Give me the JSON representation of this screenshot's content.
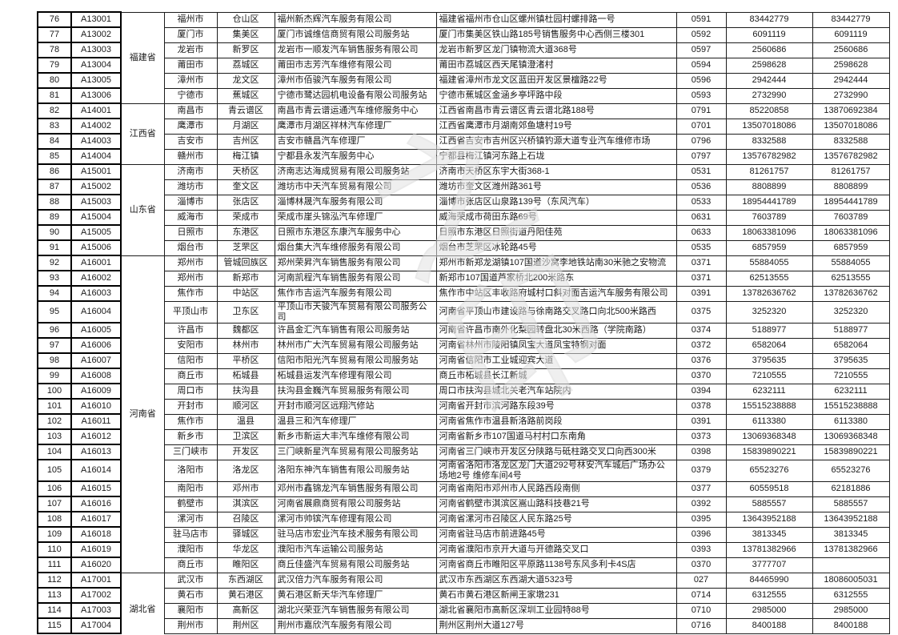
{
  "page": {
    "background": "#ffffff",
    "border_color": "#1c1c1c"
  },
  "watermark": {
    "text": "之印",
    "color": "#e2e2e2"
  },
  "table": {
    "province_groups": [
      {
        "label": "福建省",
        "start_index": 0,
        "row_count": 6
      },
      {
        "label": "江西省",
        "start_index": 6,
        "row_count": 4
      },
      {
        "label": "山东省",
        "start_index": 10,
        "row_count": 6
      },
      {
        "label": "河南省",
        "start_index": 16,
        "row_count": 20
      },
      {
        "label": "湖北省",
        "start_index": 36,
        "row_count": 4,
        "label_below_table": true
      }
    ],
    "rows": [
      {
        "num": "76",
        "code": "A13001",
        "city": "福州市",
        "district": "仓山区",
        "company": "福州新杰辉汽车服务有限公司",
        "address": "福建省福州市仓山区螺州镇杜园村螺排路一号",
        "area_code": "0591",
        "phone": "83442779",
        "phone_alt": "83442779"
      },
      {
        "num": "77",
        "code": "A13002",
        "city": "厦门市",
        "district": "集美区",
        "company": "厦门市诚维信商贸有限公司服务站",
        "address": "厦门市集美区铁山路185号销售服务中心西侧三楼301",
        "area_code": "0592",
        "phone": "6091119",
        "phone_alt": "6091119"
      },
      {
        "num": "78",
        "code": "A13003",
        "city": "龙岩市",
        "district": "新罗区",
        "company": "龙岩市一顺发汽车销售服务有限公司",
        "address": "龙岩市新罗区龙门镇物流大道368号",
        "area_code": "0597",
        "phone": "2560686",
        "phone_alt": "2560686"
      },
      {
        "num": "79",
        "code": "A13004",
        "city": "莆田市",
        "district": "荔城区",
        "company": "莆田市志芳汽车维修有限公司",
        "address": "莆田市荔城区西天尾镇澄渚村",
        "area_code": "0594",
        "phone": "2598628",
        "phone_alt": "2598628"
      },
      {
        "num": "80",
        "code": "A13005",
        "city": "漳州市",
        "district": "龙文区",
        "company": "漳州市佰骏汽车服务有限公司",
        "address": "福建省漳州市龙文区蓝田开发区景檀路22号",
        "area_code": "0596",
        "phone": "2942444",
        "phone_alt": "2942444"
      },
      {
        "num": "81",
        "code": "A13006",
        "city": "宁德市",
        "district": "蕉城区",
        "company": "宁德市鹭达园机电设备有限公司服务站",
        "address": "宁德市蕉城区金涵乡亭坪路中段",
        "area_code": "0593",
        "phone": "2732990",
        "phone_alt": "2732990"
      },
      {
        "num": "82",
        "code": "A14001",
        "city": "南昌市",
        "district": "青云谱区",
        "company": "南昌市青云谱运通汽车维修服务中心",
        "address": "江西省南昌市青云谱区青云谱北路188号",
        "area_code": "0791",
        "phone": "85220858",
        "phone_alt": "13870692384"
      },
      {
        "num": "83",
        "code": "A14002",
        "city": "鹰潭市",
        "district": "月湖区",
        "company": "鹰潭市月湖区祥林汽车修理厂",
        "address": "江西省鹰潭市月湖南郊鱼塘村19号",
        "area_code": "0701",
        "phone": "13507018086",
        "phone_alt": "13507018086"
      },
      {
        "num": "84",
        "code": "A14003",
        "city": "吉安市",
        "district": "吉州区",
        "company": "吉安市赣昌汽车修理厂",
        "address": "江西省吉安市吉州区兴桥镇钓源大道专业汽车维修市场",
        "area_code": "0796",
        "phone": "8332588",
        "phone_alt": "8332588"
      },
      {
        "num": "85",
        "code": "A14004",
        "city": "赣州市",
        "district": "梅江镇",
        "company": "宁都县永发汽车服务中心",
        "address": "宁都县梅江镇河东路上石垅",
        "area_code": "0797",
        "phone": "13576782982",
        "phone_alt": "13576782982"
      },
      {
        "num": "86",
        "code": "A15001",
        "city": "济南市",
        "district": "天桥区",
        "company": "济南志达海成贸易有限公司服务站",
        "address": "济南市天桥区东宇大街368-1",
        "area_code": "0531",
        "phone": "81261757",
        "phone_alt": "81261757"
      },
      {
        "num": "87",
        "code": "A15002",
        "city": "潍坊市",
        "district": "奎文区",
        "company": "潍坊市中天汽车贸易有限公司",
        "address": "潍坊市奎文区潍州路361号",
        "area_code": "0536",
        "phone": "8808899",
        "phone_alt": "8808899"
      },
      {
        "num": "88",
        "code": "A15003",
        "city": "淄博市",
        "district": "张店区",
        "company": "淄博林晟汽车服务有限公司",
        "address": "淄博市张店区山泉路139号（东风汽车）",
        "area_code": "0533",
        "phone": "18954441789",
        "phone_alt": "18954441789"
      },
      {
        "num": "89",
        "code": "A15004",
        "city": "威海市",
        "district": "荣成市",
        "company": "荣成市崖头锦泓汽车修理厂",
        "address": "威海荣成市荷田东路69号",
        "area_code": "0631",
        "phone": "7603789",
        "phone_alt": "7603789"
      },
      {
        "num": "90",
        "code": "A15005",
        "city": "日照市",
        "district": "东港区",
        "company": "日照市东港区东康汽车服务中心",
        "address": "日照市东港区日照街道丹阳佳苑",
        "area_code": "0633",
        "phone": "18063381096",
        "phone_alt": "18063381096"
      },
      {
        "num": "91",
        "code": "A15006",
        "city": "烟台市",
        "district": "芝罘区",
        "company": "烟台集大汽车维修服务有限公司",
        "address": "烟台市芝罘区冰轮路45号",
        "area_code": "0535",
        "phone": "6857959",
        "phone_alt": "6857959"
      },
      {
        "num": "92",
        "code": "A16001",
        "city": "郑州市",
        "district": "管城回族区",
        "company": "郑州荣昇汽车销售服务有限公司",
        "address": "郑州市新郑龙湖镇107国道沙窝李地铁站南30米驰之安物流",
        "area_code": "0371",
        "phone": "55884055",
        "phone_alt": "55884055"
      },
      {
        "num": "93",
        "code": "A16002",
        "city": "郑州市",
        "district": "新郑市",
        "company": "河南凯程汽车销售服务有限公司",
        "address": "新郑市107国道芦家桥北200米路东",
        "area_code": "0371",
        "phone": "62513555",
        "phone_alt": "62513555"
      },
      {
        "num": "94",
        "code": "A16003",
        "city": "焦作市",
        "district": "中站区",
        "company": "焦作市吉运汽车服务有限公司",
        "address": "焦作市中站区丰收路府城村口斜对面吉运汽车服务有限公司",
        "area_code": "0391",
        "phone": "13782636762",
        "phone_alt": "13782636762"
      },
      {
        "num": "95",
        "code": "A16004",
        "city": "平顶山市",
        "district": "卫东区",
        "company": "平顶山市天骏汽车贸易有限公司服务公司",
        "address": "河南省平顶山市建设路与徐南路交叉路口向北500米路西",
        "area_code": "0375",
        "phone": "3252320",
        "phone_alt": "3252320"
      },
      {
        "num": "96",
        "code": "A16005",
        "city": "许昌市",
        "district": "魏都区",
        "company": "许昌金汇汽车销售有限公司服务站",
        "address": "河南省许昌市南外化梨园转盘北30米西路（学院南路）",
        "area_code": "0374",
        "phone": "5188977",
        "phone_alt": "5188977"
      },
      {
        "num": "97",
        "code": "A16006",
        "city": "安阳市",
        "district": "林州市",
        "company": "林州市广大汽车贸易有限公司服务站",
        "address": "河南省林州市陵阳镇凤宝大道凤宝特钢对面",
        "area_code": "0372",
        "phone": "6582064",
        "phone_alt": "6582064"
      },
      {
        "num": "98",
        "code": "A16007",
        "city": "信阳市",
        "district": "平桥区",
        "company": "信阳市阳光汽车贸易有限公司服务站",
        "address": "河南省信阳市工业城迎宾大道",
        "area_code": "0376",
        "phone": "3795635",
        "phone_alt": "3795635"
      },
      {
        "num": "99",
        "code": "A16008",
        "city": "商丘市",
        "district": "柘城县",
        "company": "柘城县运发汽车修理有限公司",
        "address": "商丘市柘城县长江新城",
        "area_code": "0370",
        "phone": "7210555",
        "phone_alt": "7210555"
      },
      {
        "num": "100",
        "code": "A16009",
        "city": "周口市",
        "district": "扶沟县",
        "company": "扶沟县金巍汽车贸易服务有限公司",
        "address": "周口市扶沟县城北关老汽车站院内",
        "area_code": "0394",
        "phone": "6232111",
        "phone_alt": "6232111"
      },
      {
        "num": "101",
        "code": "A16010",
        "city": "开封市",
        "district": "顺河区",
        "company": "开封市顺河区远翔汽修站",
        "address": "河南省开封市滨河路东段39号",
        "area_code": "0378",
        "phone": "15515238888",
        "phone_alt": "15515238888"
      },
      {
        "num": "102",
        "code": "A16011",
        "city": "焦作市",
        "district": "温县",
        "company": "温县三和汽车修理厂",
        "address": "河南省焦作市温县新洛路前岗段",
        "area_code": "0391",
        "phone": "6113380",
        "phone_alt": "6113380"
      },
      {
        "num": "103",
        "code": "A16012",
        "city": "新乡市",
        "district": "卫滨区",
        "company": "新乡市新运大丰汽车维修有限公司",
        "address": "河南省新乡市107国道马村村口东南角",
        "area_code": "0373",
        "phone": "13069368348",
        "phone_alt": "13069368348"
      },
      {
        "num": "104",
        "code": "A16013",
        "city": "三门峡市",
        "district": "开发区",
        "company": "三门峡新星汽车贸易有限公司服务站",
        "address": "河南省三门峡市开发区分陕路与砥柱路交叉口向西300米",
        "area_code": "0398",
        "phone": "15839890221",
        "phone_alt": "15839890221"
      },
      {
        "num": "105",
        "code": "A16014",
        "city": "洛阳市",
        "district": "洛龙区",
        "company": "洛阳东神汽车销售有限公司服务站",
        "address": "河南省洛阳市洛龙区龙门大道292号林安汽车城后广场办公场地2号 维修车间4号",
        "area_code": "0379",
        "phone": "65523276",
        "phone_alt": "65523276"
      },
      {
        "num": "106",
        "code": "A16015",
        "city": "南阳市",
        "district": "邓州市",
        "company": "邓州市鑫锦龙汽车销售服务有限公司",
        "address": "河南省南阳市邓州市人民路西段南侧",
        "area_code": "0377",
        "phone": "60559518",
        "phone_alt": "62181886"
      },
      {
        "num": "107",
        "code": "A16016",
        "city": "鹤壁市",
        "district": "淇滨区",
        "company": "河南省展鼎商贸有限公司服务站",
        "address": "河南省鹤壁市淇滨区嵩山路科技巷21号",
        "area_code": "0392",
        "phone": "5885557",
        "phone_alt": "5885557"
      },
      {
        "num": "108",
        "code": "A16017",
        "city": "漯河市",
        "district": "召陵区",
        "company": "漯河市帅镔汽车修理有限公司",
        "address": "河南省漯河市召陵区人民东路25号",
        "area_code": "0395",
        "phone": "13643952188",
        "phone_alt": "13643952188"
      },
      {
        "num": "109",
        "code": "A16018",
        "city": "驻马店市",
        "district": "驿城区",
        "company": "驻马店市宏业汽车技术服务有限公司",
        "address": "河南省驻马店市前进路45号",
        "area_code": "0396",
        "phone": "3813345",
        "phone_alt": "3813345"
      },
      {
        "num": "110",
        "code": "A16019",
        "city": "濮阳市",
        "district": "华龙区",
        "company": "濮阳市汽车运输公司服务站",
        "address": "河南省濮阳市京开大道与开德路交叉口",
        "area_code": "0393",
        "phone": "13781382966",
        "phone_alt": "13781382966"
      },
      {
        "num": "111",
        "code": "A16020",
        "city": "商丘市",
        "district": "睢阳区",
        "company": "商丘佳盛汽车贸易有限公司服务站",
        "address": "河南省商丘市睢阳区平原路1138号东风多利卡4S店",
        "area_code": "0370",
        "phone": "3777707",
        "phone_alt": ""
      },
      {
        "num": "112",
        "code": "A17001",
        "city": "武汉市",
        "district": "东西湖区",
        "company": "武汉倍力汽车服务有限公司",
        "address": "武汉市东西湖区东西湖大道5323号",
        "area_code": "027",
        "phone": "84465990",
        "phone_alt": "18086005031"
      },
      {
        "num": "113",
        "code": "A17002",
        "city": "黄石市",
        "district": "黄石港区",
        "company": "黄石港区新天华汽车修理厂",
        "address": "黄石市黄石港区新闸王家墩231",
        "area_code": "0714",
        "phone": "6312555",
        "phone_alt": "6312555"
      },
      {
        "num": "114",
        "code": "A17003",
        "city": "襄阳市",
        "district": "高新区",
        "company": "湖北兴荣亚汽车销售服务有限公司",
        "address": "湖北省襄阳市高新区深圳工业园特88号",
        "area_code": "0710",
        "phone": "2985000",
        "phone_alt": "2985000"
      },
      {
        "num": "115",
        "code": "A17004",
        "city": "荆州市",
        "district": "荆州区",
        "company": "荆州市嘉欣汽车服务有限公司",
        "address": "荆州区荆州大道127号",
        "area_code": "0716",
        "phone": "8400188",
        "phone_alt": "8400188"
      }
    ]
  }
}
